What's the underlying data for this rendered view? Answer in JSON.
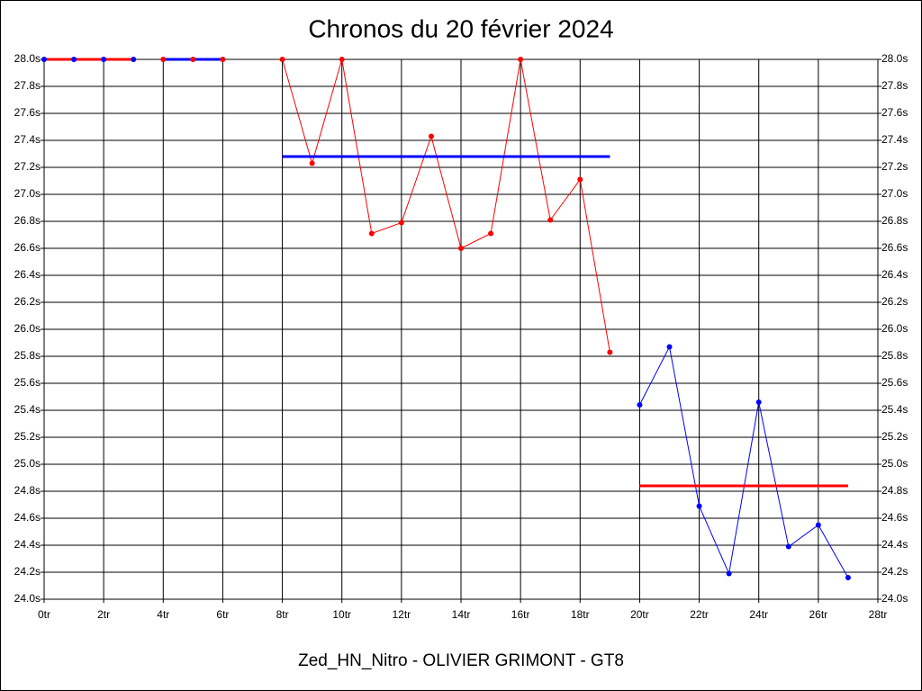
{
  "chart_data": {
    "type": "line",
    "title": "Chronos du 20 février 2024",
    "x_label": "Zed_HN_Nitro - OLIVIER GRIMONT - GT8",
    "xlim": [
      0,
      28
    ],
    "xticks": [
      {
        "value": 0,
        "label": "0tr"
      },
      {
        "value": 2,
        "label": "2tr"
      },
      {
        "value": 4,
        "label": "4tr"
      },
      {
        "value": 6,
        "label": "6tr"
      },
      {
        "value": 8,
        "label": "8tr"
      },
      {
        "value": 10,
        "label": "10tr"
      },
      {
        "value": 12,
        "label": "12tr"
      },
      {
        "value": 14,
        "label": "14tr"
      },
      {
        "value": 16,
        "label": "16tr"
      },
      {
        "value": 18,
        "label": "18tr"
      },
      {
        "value": 20,
        "label": "20tr"
      },
      {
        "value": 22,
        "label": "22tr"
      },
      {
        "value": 24,
        "label": "24tr"
      },
      {
        "value": 26,
        "label": "26tr"
      },
      {
        "value": 28,
        "label": "28tr"
      }
    ],
    "ylim": [
      24.0,
      28.0
    ],
    "yticks": [
      {
        "value": 24.0,
        "label": "24.0s"
      },
      {
        "value": 24.2,
        "label": "24.2s"
      },
      {
        "value": 24.4,
        "label": "24.4s"
      },
      {
        "value": 24.6,
        "label": "24.6s"
      },
      {
        "value": 24.8,
        "label": "24.8s"
      },
      {
        "value": 25.0,
        "label": "25.0s"
      },
      {
        "value": 25.2,
        "label": "25.2s"
      },
      {
        "value": 25.4,
        "label": "25.4s"
      },
      {
        "value": 25.6,
        "label": "25.6s"
      },
      {
        "value": 25.8,
        "label": "25.8s"
      },
      {
        "value": 26.0,
        "label": "26.0s"
      },
      {
        "value": 26.2,
        "label": "26.2s"
      },
      {
        "value": 26.4,
        "label": "26.4s"
      },
      {
        "value": 26.6,
        "label": "26.6s"
      },
      {
        "value": 26.8,
        "label": "26.8s"
      },
      {
        "value": 27.0,
        "label": "27.0s"
      },
      {
        "value": 27.2,
        "label": "27.2s"
      },
      {
        "value": 27.4,
        "label": "27.4s"
      },
      {
        "value": 27.6,
        "label": "27.6s"
      },
      {
        "value": 27.8,
        "label": "27.8s"
      },
      {
        "value": 28.0,
        "label": "28.0s"
      }
    ],
    "grid": true,
    "series": [
      {
        "color": "#ff0000",
        "marker_color": "#0000ff",
        "line_width": 3,
        "x": [
          0,
          1,
          2,
          3
        ],
        "values": [
          28.0,
          28.0,
          28.0,
          28.0
        ]
      },
      {
        "color": "#0000ff",
        "marker_color": "#ff0000",
        "line_width": 3,
        "x": [
          4,
          5,
          6
        ],
        "values": [
          28.0,
          28.0,
          28.0
        ]
      },
      {
        "color": "#ff0000",
        "marker_color": "#ff0000",
        "line_width": 1,
        "x": [
          8,
          9,
          10,
          11,
          12,
          13,
          14,
          15,
          16,
          17,
          18,
          19
        ],
        "values": [
          28.0,
          27.23,
          28.0,
          26.71,
          26.79,
          27.43,
          26.6,
          26.71,
          28.0,
          26.81,
          27.11,
          25.83
        ]
      },
      {
        "color": "#0000ff",
        "marker_color": "#0000ff",
        "line_width": 1,
        "x": [
          20,
          21,
          22,
          23,
          24,
          25,
          26,
          27
        ],
        "values": [
          25.44,
          25.87,
          24.69,
          24.19,
          25.46,
          24.39,
          24.55,
          24.16
        ]
      },
      {
        "color": "#0000ff",
        "line_width": 3,
        "x": [
          8,
          19
        ],
        "values": [
          27.28,
          27.28
        ]
      },
      {
        "color": "#ff0000",
        "line_width": 3,
        "x": [
          20,
          27
        ],
        "values": [
          24.84,
          24.84
        ]
      }
    ]
  }
}
